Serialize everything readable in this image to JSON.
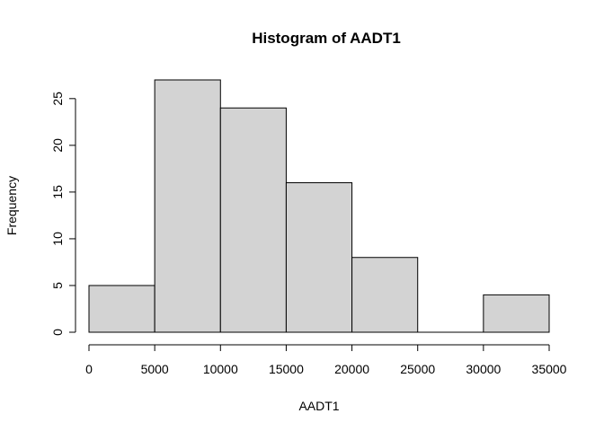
{
  "chart_data": {
    "type": "bar",
    "title": "Histogram of AADT1",
    "xlabel": "AADT1",
    "ylabel": "Frequency",
    "bins": [
      {
        "start": 0,
        "end": 5000,
        "count": 5
      },
      {
        "start": 5000,
        "end": 10000,
        "count": 27
      },
      {
        "start": 10000,
        "end": 15000,
        "count": 24
      },
      {
        "start": 15000,
        "end": 20000,
        "count": 16
      },
      {
        "start": 20000,
        "end": 25000,
        "count": 8
      },
      {
        "start": 25000,
        "end": 30000,
        "count": 0
      },
      {
        "start": 30000,
        "end": 35000,
        "count": 4
      }
    ],
    "xlim": [
      0,
      35000
    ],
    "ylim": [
      0,
      27
    ],
    "x_ticks": [
      0,
      5000,
      10000,
      15000,
      20000,
      25000,
      30000,
      35000
    ],
    "y_ticks": [
      0,
      5,
      10,
      15,
      20,
      25
    ],
    "bar_color": "#d3d3d3",
    "edge_color": "#000000",
    "grid": false
  }
}
